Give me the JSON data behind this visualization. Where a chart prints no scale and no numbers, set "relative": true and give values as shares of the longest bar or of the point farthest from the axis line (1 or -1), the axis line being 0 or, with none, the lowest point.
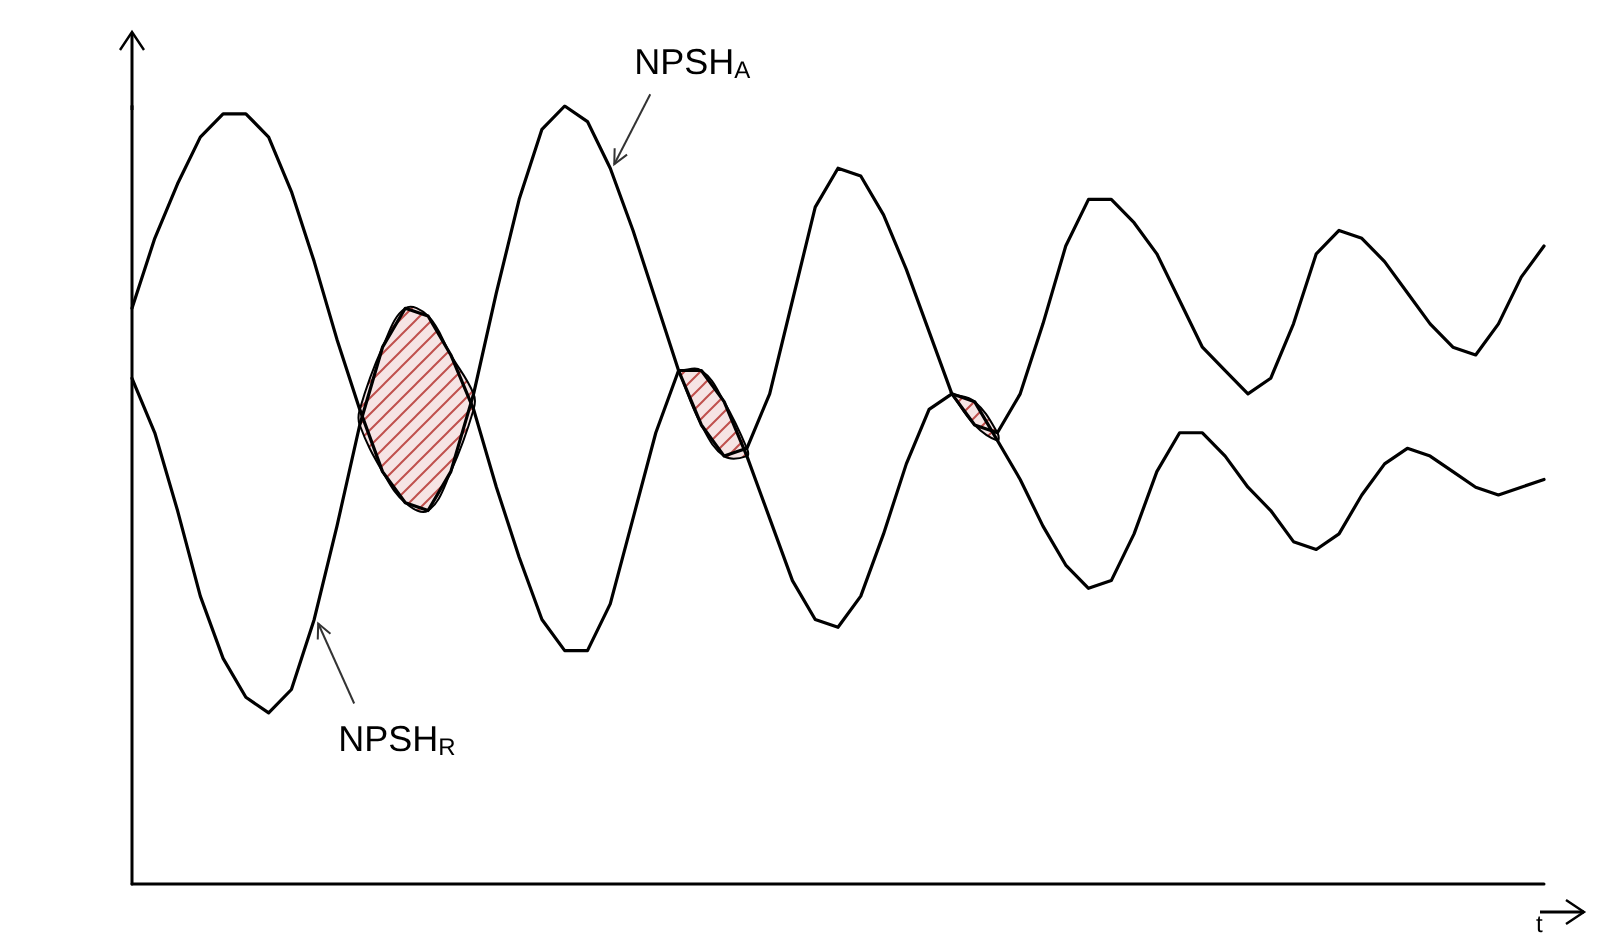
{
  "chart_data": {
    "type": "line",
    "relative": true,
    "xlabel": "t",
    "legend": false,
    "grid": false,
    "marker": "none",
    "line_style": "solid",
    "categories": [
      null,
      null,
      null,
      null,
      null,
      null,
      null,
      null,
      null,
      null,
      null,
      null,
      null,
      null,
      null,
      null,
      null,
      null,
      null,
      null,
      null,
      null,
      null,
      null,
      null,
      null,
      null,
      null,
      null,
      null,
      null,
      null,
      null,
      null,
      null,
      null,
      null,
      null,
      null,
      null,
      null,
      null,
      null,
      null,
      null,
      null,
      null,
      null,
      null,
      null,
      null,
      null,
      null,
      null,
      null,
      null,
      null,
      null,
      null,
      null,
      null,
      null,
      null
    ],
    "series": [
      {
        "name": "NPSH$_{A}$",
        "color": "#000000",
        "values": [
          0.74,
          0.83,
          0.9,
          0.96,
          0.99,
          0.99,
          0.96,
          0.89,
          0.8,
          0.7,
          0.61,
          0.53,
          0.49,
          0.48,
          0.53,
          0.63,
          0.76,
          0.88,
          0.97,
          1.0,
          0.98,
          0.92,
          0.84,
          0.75,
          0.66,
          0.59,
          0.55,
          0.56,
          0.63,
          0.75,
          0.87,
          0.92,
          0.91,
          0.86,
          0.79,
          0.71,
          0.63,
          0.59,
          0.58,
          0.63,
          0.72,
          0.82,
          0.88,
          0.88,
          0.85,
          0.81,
          0.75,
          0.69,
          0.66,
          0.63,
          0.65,
          0.72,
          0.81,
          0.84,
          0.83,
          0.8,
          0.76,
          0.72,
          0.69,
          0.68,
          0.72,
          0.78,
          0.82
        ]
      },
      {
        "name": "NPSH$_{R}$",
        "color": "#000000",
        "values": [
          0.65,
          0.58,
          0.48,
          0.37,
          0.29,
          0.24,
          0.22,
          0.25,
          0.34,
          0.46,
          0.59,
          0.69,
          0.74,
          0.73,
          0.68,
          0.61,
          0.51,
          0.42,
          0.34,
          0.3,
          0.3,
          0.36,
          0.47,
          0.58,
          0.66,
          0.66,
          0.62,
          0.55,
          0.47,
          0.39,
          0.34,
          0.33,
          0.37,
          0.45,
          0.54,
          0.61,
          0.63,
          0.62,
          0.57,
          0.52,
          0.46,
          0.41,
          0.38,
          0.39,
          0.45,
          0.53,
          0.58,
          0.58,
          0.55,
          0.51,
          0.48,
          0.44,
          0.43,
          0.45,
          0.5,
          0.54,
          0.56,
          0.55,
          0.53,
          0.51,
          0.5,
          0.51,
          0.52
        ],
        "lower": [
          null,
          null,
          null,
          null,
          null,
          null,
          null,
          null,
          null,
          null,
          0.59,
          0.53,
          0.49,
          0.48,
          0.53,
          0.61,
          null,
          null,
          null,
          null,
          null,
          null,
          null,
          null,
          0.66,
          0.59,
          0.55,
          0.55,
          null,
          null,
          null,
          null,
          null,
          null,
          null,
          null,
          0.63,
          0.59,
          0.57,
          null,
          null,
          null,
          null,
          null,
          null,
          null,
          null,
          null,
          null,
          null,
          null,
          null,
          null,
          null,
          null,
          null,
          null,
          null,
          null,
          null,
          null,
          null,
          null
        ],
        "upper": [
          null,
          null,
          null,
          null,
          null,
          null,
          null,
          null,
          null,
          null,
          0.61,
          0.69,
          0.74,
          0.73,
          0.68,
          0.63,
          null,
          null,
          null,
          null,
          null,
          null,
          null,
          null,
          0.66,
          0.66,
          0.62,
          0.56,
          null,
          null,
          null,
          null,
          null,
          null,
          null,
          null,
          0.63,
          0.62,
          0.58,
          null,
          null,
          null,
          null,
          null,
          null,
          null,
          null,
          null,
          null,
          null,
          null,
          null,
          null,
          null,
          null,
          null,
          null,
          null,
          null,
          null,
          null,
          null,
          null
        ]
      }
    ]
  }
}
